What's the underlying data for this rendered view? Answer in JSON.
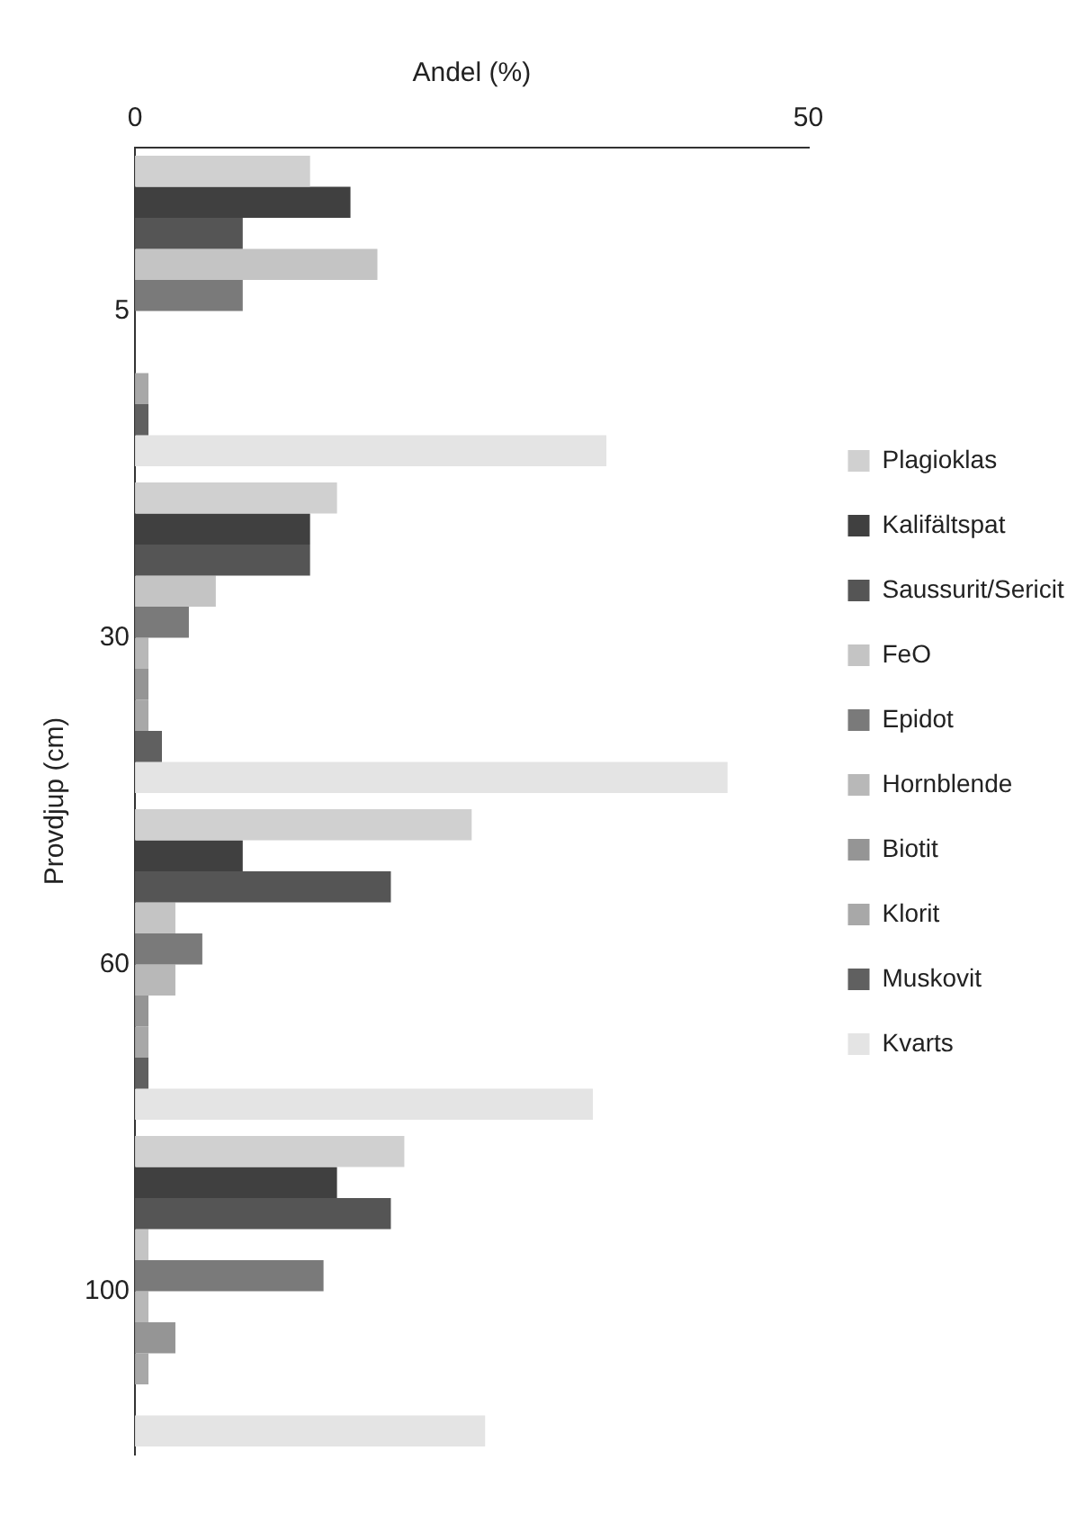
{
  "chart_data": {
    "type": "bar",
    "orientation": "horizontal",
    "xlabel": "Andel (%)",
    "ylabel": "Provdjup (cm)",
    "categories": [
      "5",
      "30",
      "60",
      "100"
    ],
    "xlim": [
      0,
      50
    ],
    "xticks": [
      0,
      50
    ],
    "grid": false,
    "legend": "right",
    "series": [
      {
        "name": "Plagioklas",
        "color": "#d0d0d0",
        "values": [
          13,
          15,
          25,
          20
        ]
      },
      {
        "name": "Kalifältspat",
        "color": "#404040",
        "values": [
          16,
          13,
          8,
          15
        ]
      },
      {
        "name": "Saussurit/Sericit",
        "color": "#555555",
        "values": [
          8,
          13,
          19,
          19
        ]
      },
      {
        "name": "FeO",
        "color": "#c4c4c4",
        "values": [
          18,
          6,
          3,
          1
        ]
      },
      {
        "name": "Epidot",
        "color": "#7a7a7a",
        "values": [
          8,
          4,
          5,
          14
        ]
      },
      {
        "name": "Hornblende",
        "color": "#b8b8b8",
        "values": [
          0,
          1,
          3,
          1
        ]
      },
      {
        "name": "Biotit",
        "color": "#959595",
        "values": [
          0,
          1,
          1,
          3
        ]
      },
      {
        "name": "Klorit",
        "color": "#a8a8a8",
        "values": [
          1,
          1,
          1,
          1
        ]
      },
      {
        "name": "Muskovit",
        "color": "#606060",
        "values": [
          1,
          2,
          1,
          0
        ]
      },
      {
        "name": "Kvarts",
        "color": "#e4e4e4",
        "values": [
          35,
          44,
          34,
          26
        ]
      }
    ]
  }
}
